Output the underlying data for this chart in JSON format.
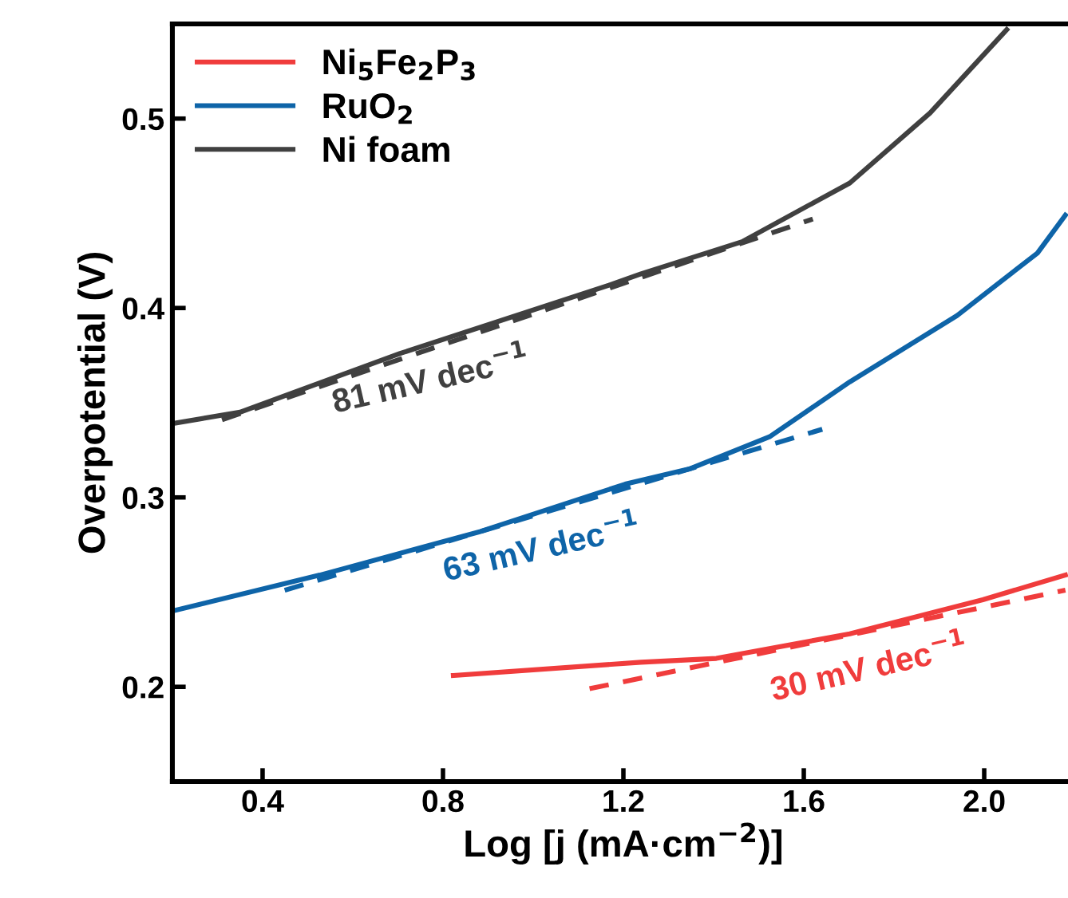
{
  "chart_data": {
    "type": "line",
    "xlabel": "Log [j (mA·cm$^{−2}$)]",
    "ylabel": "Overpotential (V)",
    "xlim": [
      0.2,
      2.2
    ],
    "xticks": [
      0.4,
      0.8,
      1.2,
      1.6,
      {
        "value": 2.0,
        "label": "2.0"
      }
    ],
    "ylim": [
      0.15,
      0.55
    ],
    "yticks": [
      0.2,
      0.3,
      0.4,
      0.5
    ],
    "grid": false,
    "legend": "top left",
    "marker": "none",
    "series": [
      {
        "name": "Ni$_{5}$Fe$_{2}$P$_{3}$",
        "color": "#f03c3c",
        "line_style": "solid",
        "x": [
          0.823,
          1.239,
          1.406,
          1.702,
          1.997,
          2.18
        ],
        "values": [
          0.206,
          0.213,
          0.215,
          0.228,
          0.246,
          0.259
        ]
      },
      {
        "name": "RuO$_{2}$",
        "color": "#0e64a8",
        "line_style": "solid",
        "x": [
          0.2,
          0.527,
          0.883,
          1.204,
          1.346,
          1.524,
          1.702,
          1.94,
          2.118,
          2.18
        ],
        "values": [
          0.24,
          0.259,
          0.282,
          0.307,
          0.315,
          0.332,
          0.361,
          0.396,
          0.429,
          0.449
        ]
      },
      {
        "name": "Ni foam",
        "color": "#404040",
        "line_style": "solid",
        "x": [
          0.2,
          0.35,
          0.705,
          1.168,
          1.239,
          1.463,
          1.702,
          1.88,
          2.05
        ],
        "values": [
          0.339,
          0.345,
          0.376,
          0.412,
          0.418,
          0.435,
          0.466,
          0.503,
          0.547
        ]
      },
      {
        "color": "#f03c3c",
        "line_style": "dashed",
        "x": [
          1.125,
          2.18
        ],
        "values": [
          0.199,
          0.251
        ]
      },
      {
        "color": "#0e64a8",
        "line_style": "dashed",
        "x": [
          0.449,
          1.641
        ],
        "values": [
          0.251,
          0.336
        ]
      },
      {
        "color": "#404040",
        "line_style": "dashed",
        "x": [
          0.31,
          1.62
        ],
        "values": [
          0.341,
          0.447
        ]
      }
    ],
    "annotations": [
      "81 mV dec$^{−1}$",
      "63 mV dec$^{−1}$",
      "30 mV dec$^{−1}$"
    ]
  }
}
